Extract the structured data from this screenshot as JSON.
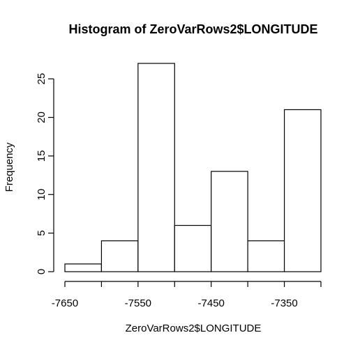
{
  "chart_data": {
    "type": "bar",
    "title": "Histogram of ZeroVarRows2$LONGITUDE",
    "xlabel": "ZeroVarRows2$LONGITUDE",
    "ylabel": "Frequency",
    "bins": [
      {
        "start": -7650,
        "end": -7600,
        "count": 1
      },
      {
        "start": -7600,
        "end": -7550,
        "count": 4
      },
      {
        "start": -7550,
        "end": -7500,
        "count": 27
      },
      {
        "start": -7500,
        "end": -7450,
        "count": 6
      },
      {
        "start": -7450,
        "end": -7400,
        "count": 13
      },
      {
        "start": -7400,
        "end": -7350,
        "count": 4
      },
      {
        "start": -7350,
        "end": -7300,
        "count": 21
      }
    ],
    "x_ticks": [
      -7650,
      -7600,
      -7550,
      -7500,
      -7450,
      -7400,
      -7350,
      -7300
    ],
    "x_tick_labels": [
      "-7650",
      "",
      "-7550",
      "",
      "-7450",
      "",
      "-7350",
      ""
    ],
    "y_ticks": [
      0,
      5,
      10,
      15,
      20,
      25
    ],
    "y_tick_labels": [
      "0",
      "5",
      "10",
      "15",
      "20",
      "25"
    ],
    "xlim": [
      -7650,
      -7300
    ],
    "ylim": [
      0,
      27
    ],
    "grid": false
  }
}
